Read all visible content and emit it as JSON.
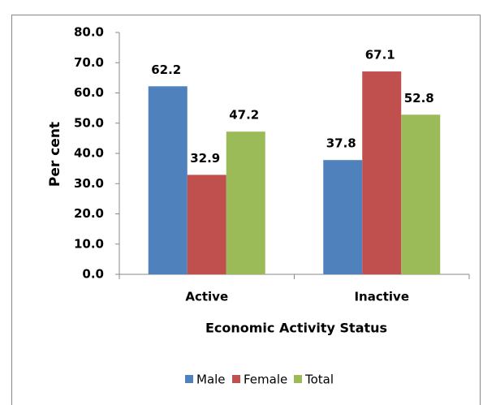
{
  "chart_data": {
    "type": "bar",
    "x_label": "Economic Activity Status",
    "y_label": "Per cent",
    "categories": [
      "Active",
      "Inactive"
    ],
    "series": [
      {
        "name": "Male",
        "color": "#4f81bd",
        "values": [
          62.2,
          37.8
        ]
      },
      {
        "name": "Female",
        "color": "#c0504d",
        "values": [
          32.9,
          67.1
        ]
      },
      {
        "name": "Total",
        "color": "#9bbb59",
        "values": [
          47.2,
          52.8
        ]
      }
    ],
    "ylim": [
      0,
      80
    ],
    "yticks": [
      {
        "value": 0,
        "label": "0.0"
      },
      {
        "value": 10,
        "label": "10.0"
      },
      {
        "value": 20,
        "label": "20.0"
      },
      {
        "value": 30,
        "label": "30.0"
      },
      {
        "value": 40,
        "label": "40.0"
      },
      {
        "value": 50,
        "label": "50.0"
      },
      {
        "value": 60,
        "label": "60.0"
      },
      {
        "value": 70,
        "label": "70.0"
      },
      {
        "value": 80,
        "label": "80.0"
      }
    ],
    "legend": "bottom",
    "grid": false
  }
}
